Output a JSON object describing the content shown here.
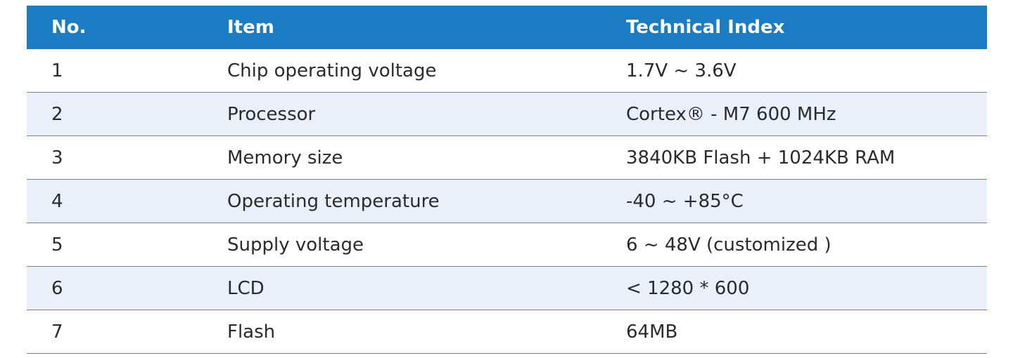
{
  "table": {
    "headers": {
      "no": "No.",
      "item": "Item",
      "index": "Technical Index"
    },
    "rows": [
      {
        "no": "1",
        "item": "Chip operating voltage",
        "index": "1.7V ~ 3.6V"
      },
      {
        "no": "2",
        "item": "Processor",
        "index": "Cortex® - M7 600 MHz"
      },
      {
        "no": "3",
        "item": "Memory size",
        "index": "3840KB Flash + 1024KB RAM"
      },
      {
        "no": "4",
        "item": "Operating temperature",
        "index": "-40 ~ +85°C"
      },
      {
        "no": "5",
        "item": "Supply voltage",
        "index": "6 ~ 48V (customized )"
      },
      {
        "no": "6",
        "item": "LCD",
        "index": "< 1280 * 600"
      },
      {
        "no": "7",
        "item": "Flash",
        "index": "64MB"
      }
    ]
  },
  "colors": {
    "header_bg": "#1a7cc2",
    "alt_row_bg": "#e9f0f9",
    "divider": "#3f8fd1"
  }
}
